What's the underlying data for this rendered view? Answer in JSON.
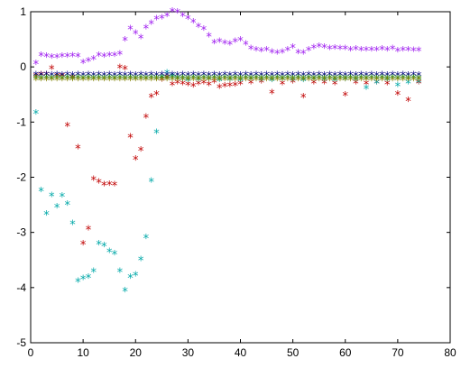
{
  "chart_data": {
    "type": "scatter",
    "title": "",
    "xlabel": "",
    "ylabel": "",
    "xlim": [
      0,
      80
    ],
    "ylim": [
      -5,
      1
    ],
    "grid": false,
    "marker": "*",
    "xticks": [
      "0",
      "10",
      "20",
      "30",
      "40",
      "50",
      "60",
      "70",
      "80"
    ],
    "yticks": [
      "1",
      "0",
      "-1",
      "-2",
      "-3",
      "-4",
      "-5"
    ],
    "series": [
      {
        "color": "#a020f0",
        "x": [
          1,
          2,
          3,
          4,
          5,
          6,
          7,
          8,
          9,
          10,
          11,
          12,
          13,
          14,
          15,
          16,
          17,
          18,
          19,
          20,
          21,
          22,
          23,
          24,
          25,
          26,
          27,
          28,
          29,
          30,
          31,
          32,
          33,
          34,
          35,
          36,
          37,
          38,
          39,
          40,
          41,
          42,
          43,
          44,
          45,
          46,
          47,
          48,
          49,
          50,
          51,
          52,
          53,
          54,
          55,
          56,
          57,
          58,
          59,
          60,
          61,
          62,
          63,
          64,
          65,
          66,
          67,
          68,
          69,
          70,
          71,
          72,
          73,
          74
        ],
        "values": [
          0.05,
          0.2,
          0.18,
          0.17,
          0.17,
          0.18,
          0.18,
          0.19,
          0.18,
          0.07,
          0.1,
          0.13,
          0.2,
          0.18,
          0.2,
          0.2,
          0.22,
          0.48,
          0.68,
          0.6,
          0.52,
          0.7,
          0.78,
          0.86,
          0.88,
          0.92,
          1.0,
          0.98,
          0.92,
          0.87,
          0.8,
          0.72,
          0.67,
          0.55,
          0.43,
          0.45,
          0.42,
          0.4,
          0.45,
          0.48,
          0.4,
          0.32,
          0.3,
          0.28,
          0.3,
          0.26,
          0.24,
          0.26,
          0.3,
          0.35,
          0.25,
          0.24,
          0.3,
          0.34,
          0.36,
          0.35,
          0.32,
          0.33,
          0.32,
          0.32,
          0.3,
          0.31,
          0.3,
          0.3,
          0.3,
          0.3,
          0.31,
          0.3,
          0.32,
          0.28,
          0.3,
          0.3,
          0.29,
          0.29
        ]
      },
      {
        "color": "#c00000",
        "x": [
          1,
          2,
          3,
          4,
          5,
          6,
          7,
          8,
          9,
          10,
          11,
          12,
          13,
          14,
          15,
          16,
          17,
          18,
          19,
          20,
          21,
          22,
          23,
          24,
          25,
          26,
          27,
          28,
          29,
          30,
          31,
          32,
          33,
          34,
          35,
          36,
          37,
          38,
          39,
          40,
          42,
          44,
          46,
          48,
          50,
          52,
          54,
          56,
          58,
          60,
          62,
          64,
          66,
          68,
          70,
          72,
          74
        ],
        "values": [
          -0.18,
          -0.15,
          -0.15,
          -0.04,
          -0.18,
          -0.18,
          -1.08,
          -0.2,
          -1.48,
          -3.22,
          -2.95,
          -2.05,
          -2.1,
          -2.15,
          -2.14,
          -2.15,
          -0.02,
          -0.05,
          -1.28,
          -1.68,
          -1.52,
          -0.92,
          -0.55,
          -0.5,
          -0.25,
          -0.2,
          -0.33,
          -0.3,
          -0.32,
          -0.33,
          -0.36,
          -0.32,
          -0.3,
          -0.33,
          -0.28,
          -0.38,
          -0.36,
          -0.35,
          -0.34,
          -0.32,
          -0.3,
          -0.28,
          -0.48,
          -0.32,
          -0.28,
          -0.55,
          -0.3,
          -0.3,
          -0.32,
          -0.52,
          -0.3,
          -0.32,
          -0.3,
          -0.32,
          -0.5,
          -0.62,
          -0.3
        ]
      },
      {
        "color": "#00a8a8",
        "x": [
          1,
          2,
          3,
          4,
          5,
          6,
          7,
          8,
          9,
          10,
          11,
          12,
          13,
          14,
          15,
          16,
          17,
          18,
          19,
          20,
          21,
          22,
          23,
          24,
          25,
          26,
          27,
          28,
          29,
          30,
          32,
          34,
          36,
          38,
          40,
          42,
          44,
          46,
          48,
          50,
          52,
          54,
          56,
          58,
          60,
          62,
          64,
          66,
          68,
          70,
          72,
          74
        ],
        "values": [
          -0.85,
          -2.25,
          -2.68,
          -2.34,
          -2.55,
          -2.35,
          -2.5,
          -2.85,
          -3.9,
          -3.85,
          -3.82,
          -3.72,
          -3.22,
          -3.25,
          -3.36,
          -3.4,
          -3.72,
          -4.07,
          -3.82,
          -3.78,
          -3.5,
          -3.1,
          -2.08,
          -1.2,
          -0.2,
          -0.12,
          -0.18,
          -0.22,
          -0.24,
          -0.26,
          -0.25,
          -0.24,
          -0.26,
          -0.25,
          -0.26,
          -0.24,
          -0.25,
          -0.26,
          -0.24,
          -0.25,
          -0.26,
          -0.24,
          -0.25,
          -0.26,
          -0.24,
          -0.25,
          -0.4,
          -0.3,
          -0.25,
          -0.35,
          -0.3,
          -0.28
        ]
      },
      {
        "color": "#000080",
        "x": [
          1,
          2,
          3,
          4,
          5,
          6,
          7,
          8,
          9,
          10,
          11,
          12,
          13,
          14,
          15,
          16,
          17,
          18,
          19,
          20,
          21,
          22,
          23,
          24,
          25,
          26,
          27,
          28,
          29,
          30,
          31,
          32,
          33,
          34,
          35,
          36,
          37,
          38,
          39,
          40,
          41,
          42,
          43,
          44,
          45,
          46,
          47,
          48,
          49,
          50,
          51,
          52,
          53,
          54,
          55,
          56,
          57,
          58,
          59,
          60,
          61,
          62,
          63,
          64,
          65,
          66,
          67,
          68,
          69,
          70,
          71,
          72,
          73,
          74
        ],
        "values": [
          -0.15,
          -0.16,
          -0.15,
          -0.16,
          -0.15,
          -0.16,
          -0.15,
          -0.16,
          -0.15,
          -0.16,
          -0.15,
          -0.16,
          -0.15,
          -0.16,
          -0.15,
          -0.16,
          -0.15,
          -0.16,
          -0.15,
          -0.16,
          -0.15,
          -0.16,
          -0.15,
          -0.16,
          -0.15,
          -0.16,
          -0.15,
          -0.16,
          -0.15,
          -0.16,
          -0.15,
          -0.16,
          -0.15,
          -0.16,
          -0.15,
          -0.16,
          -0.15,
          -0.16,
          -0.15,
          -0.16,
          -0.15,
          -0.16,
          -0.15,
          -0.16,
          -0.15,
          -0.16,
          -0.15,
          -0.16,
          -0.15,
          -0.16,
          -0.15,
          -0.16,
          -0.15,
          -0.16,
          -0.15,
          -0.16,
          -0.15,
          -0.16,
          -0.15,
          -0.16,
          -0.15,
          -0.16,
          -0.15,
          -0.16,
          -0.15,
          -0.16,
          -0.15,
          -0.16,
          -0.15,
          -0.16,
          -0.15,
          -0.16,
          -0.15,
          -0.16
        ]
      },
      {
        "color": "#008000",
        "x": [
          1,
          2,
          3,
          4,
          5,
          6,
          7,
          8,
          9,
          10,
          11,
          12,
          13,
          14,
          15,
          16,
          17,
          18,
          19,
          20,
          21,
          22,
          23,
          24,
          25,
          26,
          27,
          28,
          29,
          30,
          31,
          32,
          33,
          34,
          35,
          36,
          37,
          38,
          39,
          40,
          41,
          42,
          43,
          44,
          45,
          46,
          47,
          48,
          49,
          50,
          51,
          52,
          53,
          54,
          55,
          56,
          57,
          58,
          59,
          60,
          61,
          62,
          63,
          64,
          65,
          66,
          67,
          68,
          69,
          70,
          71,
          72,
          73,
          74
        ],
        "values": [
          -0.21,
          -0.22,
          -0.21,
          -0.22,
          -0.21,
          -0.22,
          -0.21,
          -0.22,
          -0.21,
          -0.22,
          -0.21,
          -0.22,
          -0.21,
          -0.22,
          -0.21,
          -0.22,
          -0.21,
          -0.22,
          -0.21,
          -0.22,
          -0.21,
          -0.22,
          -0.21,
          -0.22,
          -0.21,
          -0.22,
          -0.21,
          -0.22,
          -0.21,
          -0.22,
          -0.21,
          -0.22,
          -0.21,
          -0.22,
          -0.21,
          -0.22,
          -0.21,
          -0.22,
          -0.21,
          -0.22,
          -0.21,
          -0.22,
          -0.21,
          -0.22,
          -0.21,
          -0.22,
          -0.21,
          -0.22,
          -0.21,
          -0.22,
          -0.21,
          -0.22,
          -0.21,
          -0.22,
          -0.21,
          -0.22,
          -0.21,
          -0.22,
          -0.21,
          -0.22,
          -0.21,
          -0.22,
          -0.21,
          -0.22,
          -0.21,
          -0.22,
          -0.21,
          -0.22,
          -0.21,
          -0.22,
          -0.21,
          -0.22,
          -0.21,
          -0.22
        ]
      },
      {
        "color": "#808000",
        "x": [
          1,
          2,
          3,
          4,
          5,
          6,
          7,
          8,
          9,
          10,
          11,
          12,
          13,
          14,
          15,
          16,
          17,
          18,
          19,
          20,
          21,
          22,
          23,
          24,
          25,
          26,
          27,
          28,
          29,
          30,
          31,
          32,
          33,
          34,
          35,
          36,
          37,
          38,
          39,
          40,
          41,
          42,
          43,
          44,
          45,
          46,
          47,
          48,
          49,
          50,
          51,
          52,
          53,
          54,
          55,
          56,
          57,
          58,
          59,
          60,
          61,
          62,
          63,
          64,
          65,
          66,
          67,
          68,
          69,
          70,
          71,
          72,
          73,
          74
        ],
        "values": [
          -0.24,
          -0.24,
          -0.24,
          -0.24,
          -0.24,
          -0.24,
          -0.24,
          -0.24,
          -0.24,
          -0.24,
          -0.24,
          -0.24,
          -0.24,
          -0.24,
          -0.24,
          -0.24,
          -0.24,
          -0.24,
          -0.24,
          -0.24,
          -0.24,
          -0.24,
          -0.24,
          -0.24,
          -0.24,
          -0.24,
          -0.24,
          -0.24,
          -0.24,
          -0.24,
          -0.24,
          -0.24,
          -0.24,
          -0.24,
          -0.24,
          -0.24,
          -0.24,
          -0.24,
          -0.24,
          -0.24,
          -0.24,
          -0.24,
          -0.24,
          -0.24,
          -0.24,
          -0.24,
          -0.24,
          -0.24,
          -0.24,
          -0.24,
          -0.24,
          -0.24,
          -0.24,
          -0.24,
          -0.24,
          -0.24,
          -0.24,
          -0.24,
          -0.24,
          -0.24,
          -0.24,
          -0.24,
          -0.24,
          -0.24,
          -0.24,
          -0.24,
          -0.24,
          -0.24,
          -0.24,
          -0.24,
          -0.24,
          -0.24,
          -0.24,
          -0.24
        ]
      }
    ]
  }
}
